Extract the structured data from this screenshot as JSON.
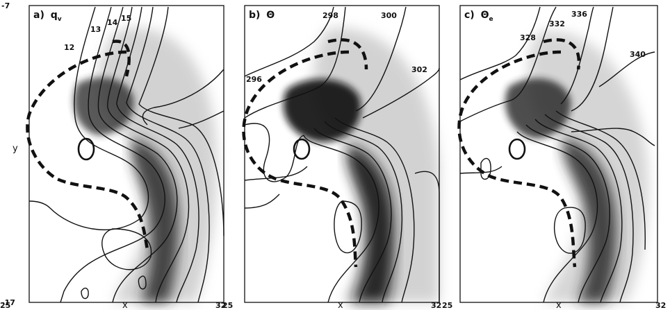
{
  "figure": {
    "y_axis": {
      "label": "y",
      "top": "-7",
      "bottom": "-17"
    },
    "x_axis": {
      "label": "x",
      "left": "25",
      "right": "32"
    },
    "panels": [
      {
        "id": "a",
        "prefix": "a)",
        "symbol": "q",
        "subscript": "v",
        "contour_labels": [
          "12",
          "13",
          "14",
          "15"
        ]
      },
      {
        "id": "b",
        "prefix": "b)",
        "symbol": "Θ",
        "subscript": "",
        "contour_labels": [
          "298",
          "300",
          "296",
          "302"
        ]
      },
      {
        "id": "c",
        "prefix": "c)",
        "symbol": "Θ",
        "subscript": "e",
        "contour_labels": [
          "336",
          "332",
          "328",
          "340"
        ]
      }
    ]
  },
  "colors": {
    "ink": "#111111",
    "shade_dark": "#1a1a1a",
    "shade_mid": "#6e6e6e",
    "shade_light": "#c4c4c4"
  }
}
